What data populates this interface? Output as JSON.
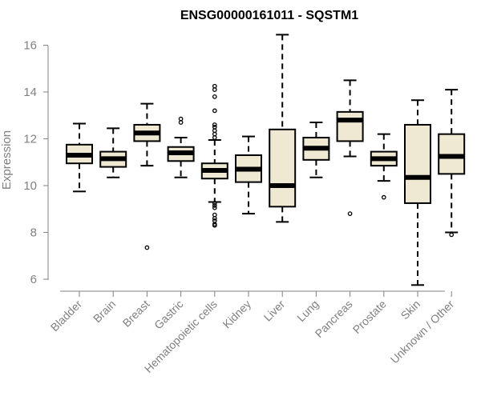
{
  "chart_data": {
    "type": "boxplot",
    "title": "ENSG00000161011 - SQSTM1",
    "xlabel": "",
    "ylabel": "Expression",
    "ylim": [
      5.5,
      16.5
    ],
    "yticks": [
      6,
      8,
      10,
      12,
      14,
      16
    ],
    "grid": false,
    "box_fill": "#efe8d2",
    "box_stroke": "#000000",
    "categories": [
      "Bladder",
      "Brain",
      "Breast",
      "Gastric",
      "Hematopoietic cells",
      "Kidney",
      "Liver",
      "Lung",
      "Pancreas",
      "Prostate",
      "Skin",
      "Unknown / Other"
    ],
    "series": [
      {
        "name": "Bladder",
        "min": 9.75,
        "q1": 10.95,
        "median": 11.3,
        "q3": 11.75,
        "max": 12.65,
        "outliers": []
      },
      {
        "name": "Brain",
        "min": 10.35,
        "q1": 10.8,
        "median": 11.15,
        "q3": 11.45,
        "max": 12.45,
        "outliers": []
      },
      {
        "name": "Breast",
        "min": 10.85,
        "q1": 11.9,
        "median": 12.25,
        "q3": 12.6,
        "max": 13.5,
        "outliers": [
          7.35
        ]
      },
      {
        "name": "Gastric",
        "min": 10.35,
        "q1": 11.05,
        "median": 11.4,
        "q3": 11.65,
        "max": 12.05,
        "outliers": [
          12.7,
          12.85
        ]
      },
      {
        "name": "Hematopoietic cells",
        "min": 9.3,
        "q1": 10.3,
        "median": 10.65,
        "q3": 10.95,
        "max": 11.95,
        "outliers": [
          14.25,
          14.1,
          13.8,
          13.2,
          12.6,
          12.5,
          12.35,
          12.2,
          12.05,
          9.25,
          9.15,
          9.05,
          8.75,
          8.6,
          8.5,
          8.35,
          8.3
        ]
      },
      {
        "name": "Kidney",
        "min": 8.8,
        "q1": 10.15,
        "median": 10.7,
        "q3": 11.3,
        "max": 12.1,
        "outliers": []
      },
      {
        "name": "Liver",
        "min": 8.45,
        "q1": 9.1,
        "median": 10.0,
        "q3": 12.4,
        "max": 16.45,
        "outliers": []
      },
      {
        "name": "Lung",
        "min": 10.35,
        "q1": 11.1,
        "median": 11.6,
        "q3": 12.05,
        "max": 12.7,
        "outliers": []
      },
      {
        "name": "Pancreas",
        "min": 11.25,
        "q1": 11.9,
        "median": 12.8,
        "q3": 13.15,
        "max": 14.5,
        "outliers": [
          8.8
        ]
      },
      {
        "name": "Prostate",
        "min": 10.2,
        "q1": 10.85,
        "median": 11.15,
        "q3": 11.45,
        "max": 12.2,
        "outliers": [
          9.5
        ]
      },
      {
        "name": "Skin",
        "min": 5.75,
        "q1": 9.25,
        "median": 10.35,
        "q3": 12.6,
        "max": 13.65,
        "outliers": []
      },
      {
        "name": "Unknown / Other",
        "min": 8.0,
        "q1": 10.5,
        "median": 11.25,
        "q3": 12.2,
        "max": 14.1,
        "outliers": [
          7.9
        ]
      }
    ]
  }
}
